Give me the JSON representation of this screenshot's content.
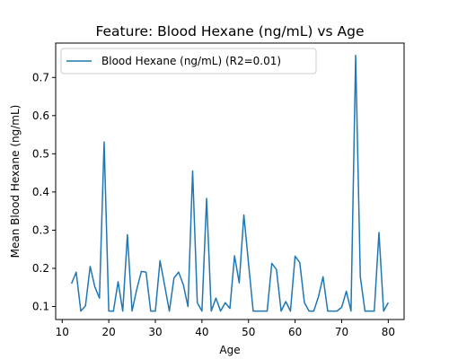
{
  "chart_data": {
    "type": "line",
    "title": "Feature: Blood Hexane (ng/mL) vs Age",
    "xlabel": "Age",
    "ylabel": "Mean Blood Hexane (ng/mL)",
    "xlim": [
      8.6,
      83.4
    ],
    "ylim": [
      0.066,
      0.79
    ],
    "xticks": [
      10,
      20,
      30,
      40,
      50,
      60,
      70,
      80
    ],
    "yticks": [
      0.1,
      0.2,
      0.3,
      0.4,
      0.5,
      0.6,
      0.7
    ],
    "ytick_labels": [
      "0.1",
      "0.2",
      "0.3",
      "0.4",
      "0.5",
      "0.6",
      "0.7"
    ],
    "grid": false,
    "legend_position": "upper-left",
    "series": [
      {
        "name": "Blood Hexane (ng/mL) (R2=0.01)",
        "color": "#1f77b4",
        "x": [
          12,
          13,
          14,
          15,
          16,
          17,
          18,
          19,
          20,
          21,
          22,
          23,
          24,
          25,
          26,
          27,
          28,
          29,
          30,
          31,
          32,
          33,
          34,
          35,
          36,
          37,
          38,
          39,
          40,
          41,
          42,
          43,
          44,
          45,
          46,
          47,
          48,
          49,
          50,
          51,
          52,
          53,
          54,
          55,
          56,
          57,
          58,
          59,
          60,
          61,
          62,
          63,
          64,
          65,
          66,
          67,
          68,
          69,
          70,
          71,
          72,
          73,
          74,
          75,
          76,
          77,
          78,
          79,
          80
        ],
        "y": [
          0.16,
          0.19,
          0.088,
          0.102,
          0.205,
          0.152,
          0.122,
          0.531,
          0.088,
          0.088,
          0.165,
          0.088,
          0.288,
          0.088,
          0.145,
          0.192,
          0.19,
          0.088,
          0.088,
          0.22,
          0.155,
          0.088,
          0.175,
          0.19,
          0.157,
          0.1,
          0.455,
          0.11,
          0.088,
          0.383,
          0.088,
          0.122,
          0.088,
          0.11,
          0.095,
          0.233,
          0.162,
          0.34,
          0.213,
          0.088,
          0.088,
          0.088,
          0.088,
          0.213,
          0.197,
          0.088,
          0.113,
          0.088,
          0.232,
          0.215,
          0.11,
          0.088,
          0.088,
          0.125,
          0.178,
          0.088,
          0.088,
          0.088,
          0.098,
          0.14,
          0.088,
          0.758,
          0.178,
          0.088,
          0.088,
          0.088,
          0.294,
          0.088,
          0.11
        ]
      }
    ]
  }
}
